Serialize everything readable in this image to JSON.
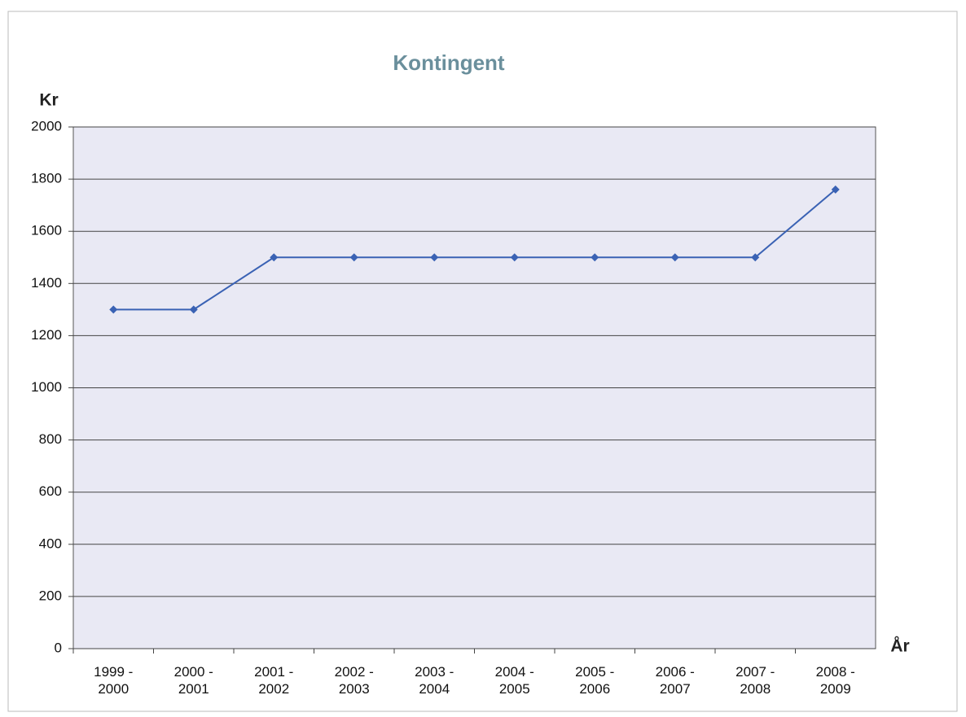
{
  "chart_data": {
    "type": "line",
    "title": "Kontingent",
    "y_label": "Kr",
    "x_label": "År",
    "categories": [
      "1999 - 2000",
      "2000 - 2001",
      "2001 - 2002",
      "2002 - 2003",
      "2003 - 2004",
      "2004 - 2005",
      "2005 - 2006",
      "2006 - 2007",
      "2007 - 2008",
      "2008 - 2009"
    ],
    "series": [
      {
        "name": "Kontingent",
        "color": "#3a62b4",
        "values": [
          1300,
          1300,
          1500,
          1500,
          1500,
          1500,
          1500,
          1500,
          1500,
          1760
        ]
      }
    ],
    "ylim": [
      0,
      2000
    ],
    "yticks": [
      0,
      200,
      400,
      600,
      800,
      1000,
      1200,
      1400,
      1600,
      1800,
      2000
    ],
    "grid": true
  }
}
